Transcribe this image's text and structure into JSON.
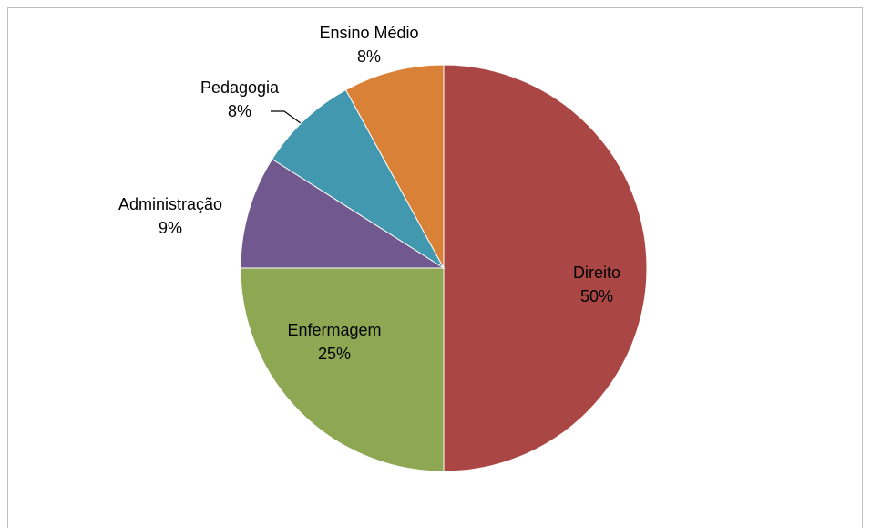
{
  "chart_data": {
    "type": "pie",
    "categories": [
      "Direito",
      "Enfermagem",
      "Administração",
      "Pedagogia",
      "Ensino Médio"
    ],
    "values": [
      50,
      25,
      9,
      8,
      8
    ],
    "value_labels": [
      "50%",
      "25%",
      "9%",
      "8%",
      "8%"
    ],
    "colors": [
      "#aa4644",
      "#8da753",
      "#71598f",
      "#4298af",
      "#da8138"
    ]
  }
}
